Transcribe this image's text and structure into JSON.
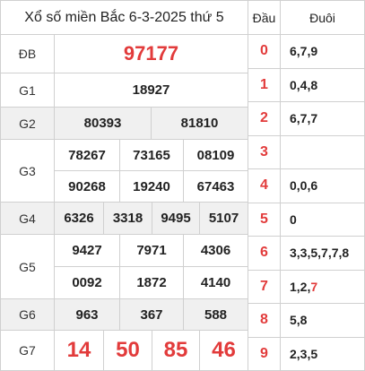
{
  "title": "Xổ số miền Bắc 6-3-2025 thứ 5",
  "prizes": {
    "db": {
      "label": "ĐB",
      "numbers": [
        "97177"
      ]
    },
    "g1": {
      "label": "G1",
      "numbers": [
        "18927"
      ]
    },
    "g2": {
      "label": "G2",
      "numbers": [
        "80393",
        "81810"
      ]
    },
    "g3": {
      "label": "G3",
      "numbers": [
        "78267",
        "73165",
        "08109",
        "90268",
        "19240",
        "67463"
      ]
    },
    "g4": {
      "label": "G4",
      "numbers": [
        "6326",
        "3318",
        "9495",
        "5107"
      ]
    },
    "g5": {
      "label": "G5",
      "numbers": [
        "9427",
        "7971",
        "4306",
        "0092",
        "1872",
        "4140"
      ]
    },
    "g6": {
      "label": "G6",
      "numbers": [
        "963",
        "367",
        "588"
      ]
    },
    "g7": {
      "label": "G7",
      "numbers": [
        "14",
        "50",
        "85",
        "46"
      ]
    }
  },
  "loto": {
    "head_label": "Đầu",
    "tail_label": "Đuôi",
    "rows": [
      {
        "head": "0",
        "tail": "6,7,9"
      },
      {
        "head": "1",
        "tail": "0,4,8"
      },
      {
        "head": "2",
        "tail": "6,7,7"
      },
      {
        "head": "3",
        "tail": ""
      },
      {
        "head": "4",
        "tail": "0,0,6"
      },
      {
        "head": "5",
        "tail": "0"
      },
      {
        "head": "6",
        "tail": "3,3,5,7,7,8"
      },
      {
        "head": "7",
        "tail_prefix": "1,2,",
        "tail_highlight": "7"
      },
      {
        "head": "8",
        "tail": "5,8"
      },
      {
        "head": "9",
        "tail": "2,3,5"
      }
    ]
  },
  "colors": {
    "accent": "#e23b3b",
    "row_gray": "#f0f0f0",
    "border": "#d0d0d0"
  }
}
